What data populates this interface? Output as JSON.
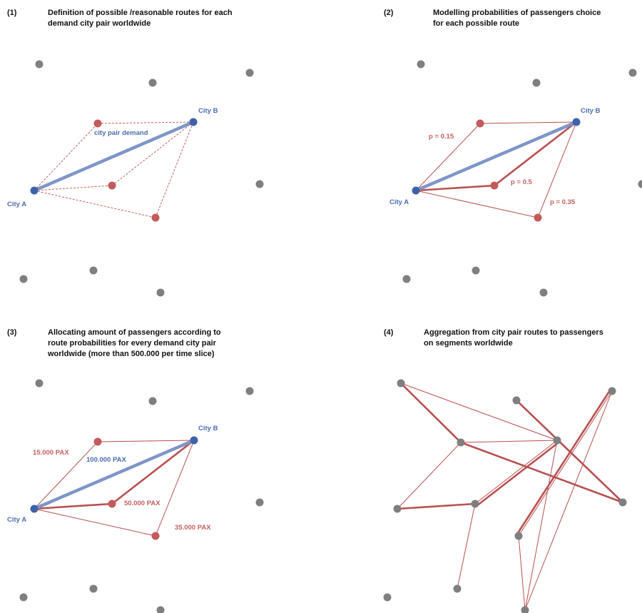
{
  "colors": {
    "grey_node": "#7f7f7f",
    "red_node": "#c45a5a",
    "blue_node": "#3e62aa",
    "demand_line": "#7f95c8",
    "route_line": "#b85050"
  },
  "panels": [
    {
      "number": "(1)",
      "title_lines": [
        "Definition of possible /reasonable routes for each",
        "demand city pair worldwide"
      ],
      "city_a": "City A",
      "city_b": "City B",
      "demand_label": "city pair demand"
    },
    {
      "number": "(2)",
      "title_lines": [
        "Modelling probabilities of passengers choice",
        "for each possible route"
      ],
      "city_a": "City A",
      "city_b": "City B",
      "route_labels": [
        "p = 0.15",
        "p = 0.5",
        "p = 0.35"
      ]
    },
    {
      "number": "(3)",
      "title_lines": [
        "Allocating amount of passengers according to",
        "route probabilities for every demand city pair",
        "worldwide (more than 500.000 per time slice)"
      ],
      "city_a": "City A",
      "city_b": "City B",
      "demand_label": "100.000 PAX",
      "route_labels": [
        "15.000 PAX",
        "50.000 PAX",
        "35.000 PAX"
      ]
    },
    {
      "number": "(4)",
      "title_lines": [
        "Aggregation from city pair routes to passengers",
        "on segments worldwide"
      ]
    }
  ]
}
